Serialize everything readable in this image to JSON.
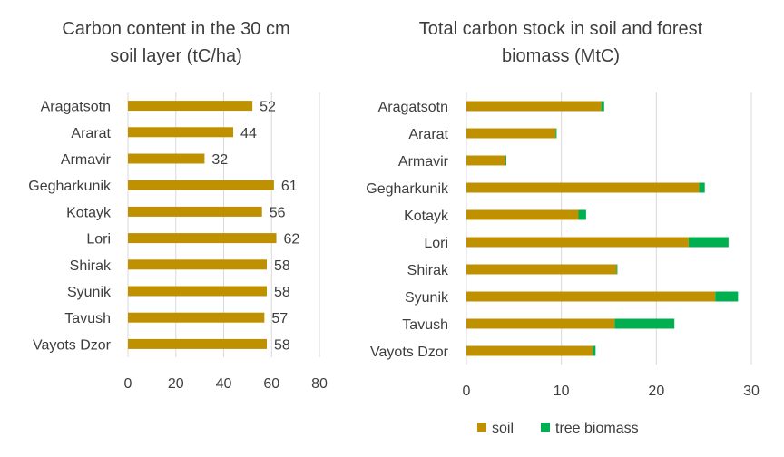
{
  "colors": {
    "soil": "#BF9000",
    "tree_biomass": "#00B050",
    "grid": "#D9D9D9",
    "text": "#3D3D3D"
  },
  "chart_data": [
    {
      "type": "bar",
      "orientation": "horizontal",
      "title_lines": [
        "Carbon content in the 30 cm",
        "soil layer (tC/ha)"
      ],
      "categories": [
        "Aragatsotn",
        "Ararat",
        "Armavir",
        "Gegharkunik",
        "Kotayk",
        "Lori",
        "Shirak",
        "Syunik",
        "Tavush",
        "Vayots Dzor"
      ],
      "values": [
        52,
        44,
        32,
        61,
        56,
        62,
        58,
        58,
        57,
        58
      ],
      "xlim": [
        0,
        80
      ],
      "xticks": [
        0,
        20,
        40,
        60,
        80
      ],
      "data_labels": true,
      "grid": "vertical"
    },
    {
      "type": "bar",
      "orientation": "horizontal",
      "stacked": true,
      "title_lines": [
        "Total carbon stock in soil and forest",
        "biomass (MtC)"
      ],
      "categories": [
        "Aragatsotn",
        "Ararat",
        "Armavir",
        "Gegharkunik",
        "Kotayk",
        "Lori",
        "Shirak",
        "Syunik",
        "Tavush",
        "Vayots Dzor"
      ],
      "series": [
        {
          "name": "soil",
          "values": [
            14.2,
            9.4,
            4.1,
            24.5,
            11.8,
            23.4,
            15.8,
            26.2,
            15.6,
            13.3
          ]
        },
        {
          "name": "tree biomass",
          "values": [
            0.3,
            0.1,
            0.1,
            0.6,
            0.8,
            4.2,
            0.1,
            2.4,
            6.3,
            0.3
          ]
        }
      ],
      "xlim": [
        0,
        30
      ],
      "xticks": [
        0,
        10,
        20,
        30
      ],
      "legend": "bottom",
      "grid": "vertical"
    }
  ]
}
